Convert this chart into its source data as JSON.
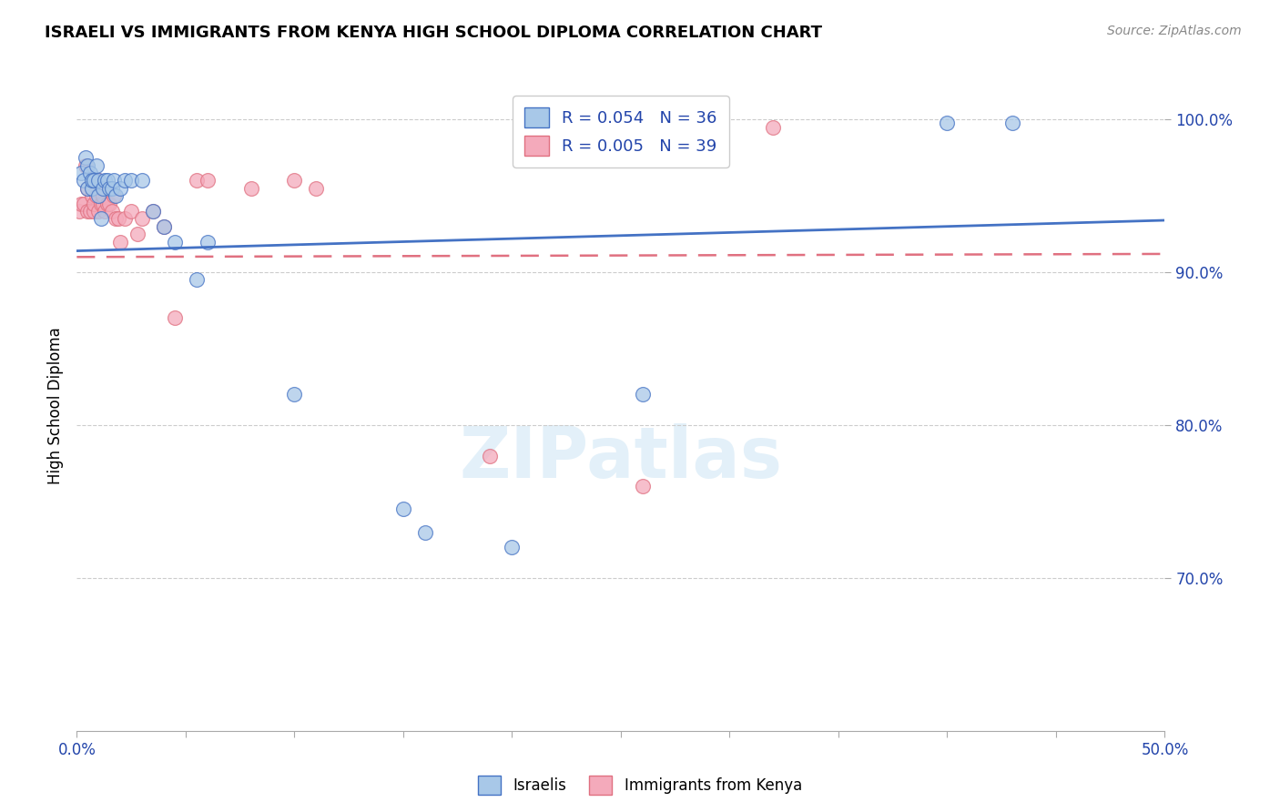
{
  "title": "ISRAELI VS IMMIGRANTS FROM KENYA HIGH SCHOOL DIPLOMA CORRELATION CHART",
  "source": "Source: ZipAtlas.com",
  "ylabel": "High School Diploma",
  "legend_label1": "Israelis",
  "legend_label2": "Immigrants from Kenya",
  "r1": 0.054,
  "n1": 36,
  "r2": 0.005,
  "n2": 39,
  "xmin": 0.0,
  "xmax": 0.5,
  "ymin": 0.6,
  "ymax": 1.025,
  "yticks": [
    0.7,
    0.8,
    0.9,
    1.0
  ],
  "ytick_labels": [
    "70.0%",
    "80.0%",
    "90.0%",
    "100.0%"
  ],
  "xticks": [
    0.0,
    0.05,
    0.1,
    0.15,
    0.2,
    0.25,
    0.3,
    0.35,
    0.4,
    0.45,
    0.5
  ],
  "xtick_labels": [
    "0.0%",
    "",
    "",
    "",
    "",
    "",
    "",
    "",
    "",
    "",
    "50.0%"
  ],
  "color_israeli": "#A8C8E8",
  "color_kenya": "#F4AABB",
  "trendline_color_israeli": "#4472C4",
  "trendline_color_kenya": "#E07080",
  "scatter_alpha": 0.75,
  "trendline_israeli": [
    0.914,
    0.934
  ],
  "trendline_kenya": [
    0.91,
    0.912
  ],
  "israelis_x": [
    0.002,
    0.003,
    0.004,
    0.005,
    0.005,
    0.006,
    0.007,
    0.007,
    0.008,
    0.009,
    0.01,
    0.01,
    0.011,
    0.012,
    0.013,
    0.014,
    0.015,
    0.016,
    0.017,
    0.018,
    0.02,
    0.022,
    0.025,
    0.03,
    0.035,
    0.04,
    0.045,
    0.055,
    0.06,
    0.1,
    0.15,
    0.16,
    0.2,
    0.26,
    0.4,
    0.43
  ],
  "israelis_y": [
    0.965,
    0.96,
    0.975,
    0.97,
    0.955,
    0.965,
    0.955,
    0.96,
    0.96,
    0.97,
    0.96,
    0.95,
    0.935,
    0.955,
    0.96,
    0.96,
    0.955,
    0.955,
    0.96,
    0.95,
    0.955,
    0.96,
    0.96,
    0.96,
    0.94,
    0.93,
    0.92,
    0.895,
    0.92,
    0.82,
    0.745,
    0.73,
    0.72,
    0.82,
    0.998,
    0.998
  ],
  "kenya_x": [
    0.001,
    0.002,
    0.003,
    0.004,
    0.005,
    0.005,
    0.006,
    0.007,
    0.008,
    0.008,
    0.009,
    0.01,
    0.01,
    0.011,
    0.012,
    0.012,
    0.013,
    0.014,
    0.015,
    0.016,
    0.017,
    0.018,
    0.019,
    0.02,
    0.022,
    0.025,
    0.028,
    0.03,
    0.035,
    0.04,
    0.045,
    0.055,
    0.06,
    0.08,
    0.1,
    0.11,
    0.19,
    0.26,
    0.32
  ],
  "kenya_y": [
    0.94,
    0.945,
    0.945,
    0.97,
    0.94,
    0.955,
    0.94,
    0.95,
    0.94,
    0.945,
    0.95,
    0.96,
    0.94,
    0.945,
    0.945,
    0.95,
    0.94,
    0.945,
    0.945,
    0.94,
    0.95,
    0.935,
    0.935,
    0.92,
    0.935,
    0.94,
    0.925,
    0.935,
    0.94,
    0.93,
    0.87,
    0.96,
    0.96,
    0.955,
    0.96,
    0.955,
    0.78,
    0.76,
    0.995
  ]
}
